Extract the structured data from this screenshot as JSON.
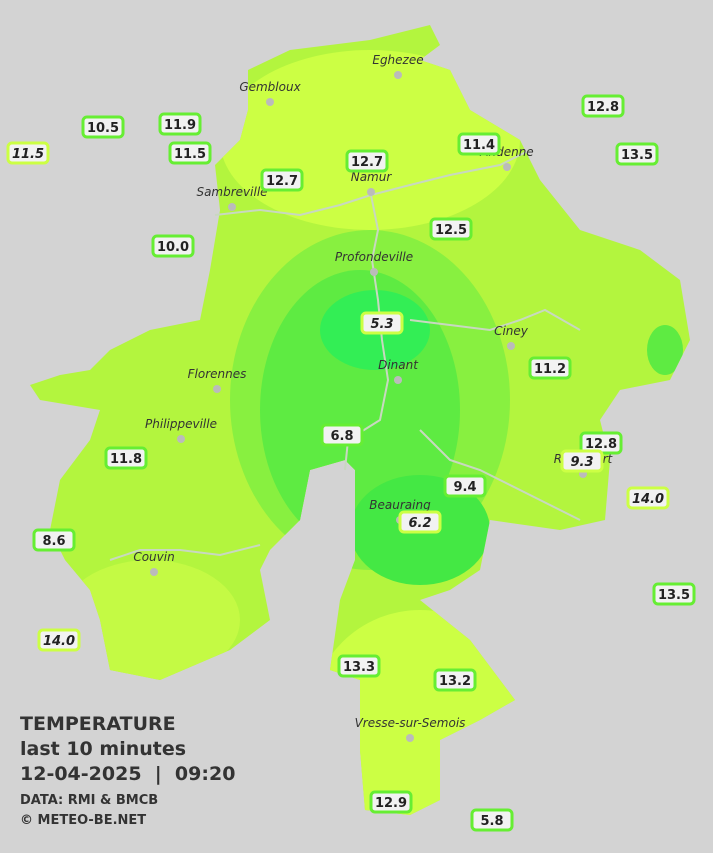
{
  "title": {
    "heading": "TEMPERATURE",
    "subtitle": "last 10 minutes",
    "datetime": "12-04-2025  |  09:20",
    "source": "DATA: RMI & BMCB",
    "credit": "© METEO-BE.NET"
  },
  "towns": [
    "Eghezee",
    "Gembloux",
    "Andenne",
    "Namur",
    "Sambreville",
    "Profondeville",
    "Ciney",
    "Dinant",
    "Florennes",
    "Philippeville",
    "Rochefort",
    "Beauraing",
    "Couvin",
    "Vresse-sur-Semois"
  ],
  "stations": [
    {
      "label": "10.5"
    },
    {
      "label": "11.9"
    },
    {
      "label": "11.5",
      "italic": true
    },
    {
      "label": "11.5"
    },
    {
      "label": "12.8"
    },
    {
      "label": "13.5"
    },
    {
      "label": "11.4"
    },
    {
      "label": "12.7"
    },
    {
      "label": "12.7"
    },
    {
      "label": "12.5"
    },
    {
      "label": "10.0"
    },
    {
      "label": "5.3",
      "italic": true
    },
    {
      "label": "11.2"
    },
    {
      "label": "6.8"
    },
    {
      "label": "12.8"
    },
    {
      "label": "9.3",
      "italic": true
    },
    {
      "label": "11.8"
    },
    {
      "label": "9.4"
    },
    {
      "label": "14.0",
      "italic": true
    },
    {
      "label": "6.2",
      "italic": true
    },
    {
      "label": "8.6"
    },
    {
      "label": "13.5"
    },
    {
      "label": "14.0",
      "italic": true
    },
    {
      "label": "13.3"
    },
    {
      "label": "13.2"
    },
    {
      "label": "12.9"
    },
    {
      "label": "5.8"
    }
  ]
}
